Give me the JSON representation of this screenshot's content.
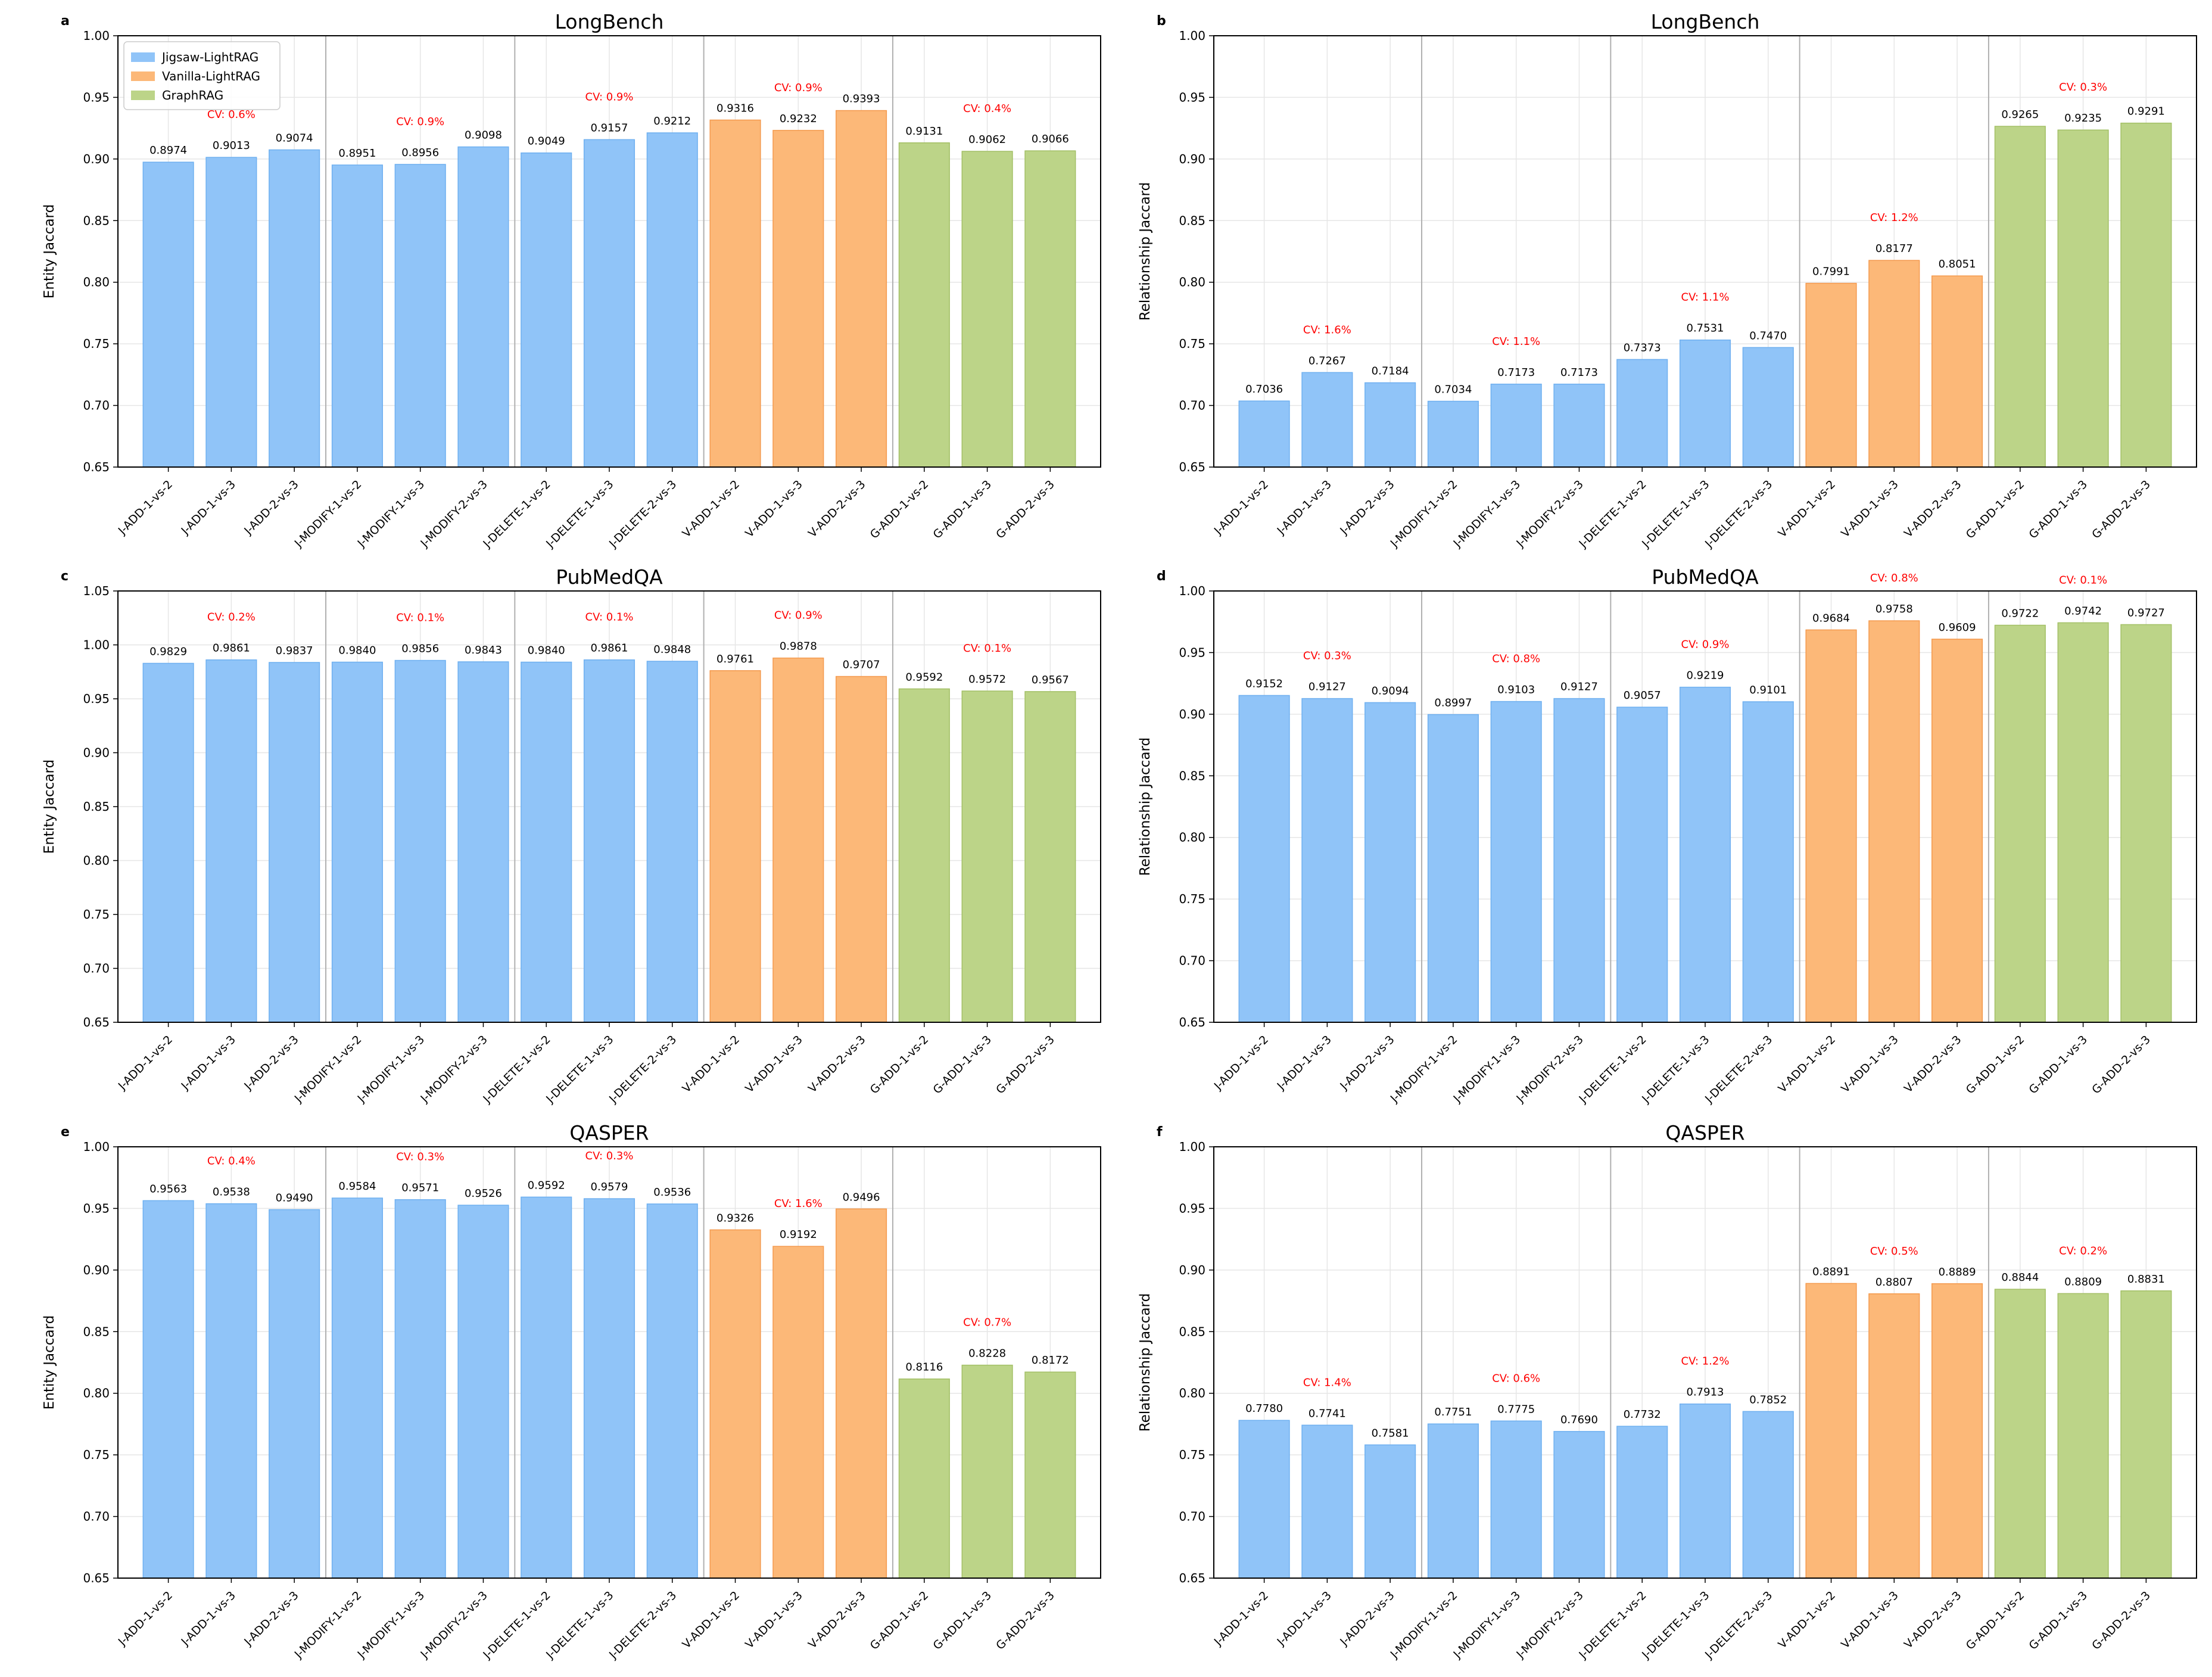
{
  "colors": {
    "jigsaw": "#90c4f8",
    "jigsaw_edge": "#6fb0f0",
    "vanilla": "#fcb878",
    "vanilla_edge": "#f49a4e",
    "graphrag": "#bcd488",
    "graphrag_edge": "#a3c066",
    "cv_label": "#ff0000",
    "grid": "#e6e6e6",
    "separator": "#b0b0b0"
  },
  "legend": {
    "placement": "top-left of panel a",
    "items": [
      {
        "label": "Jigsaw-LightRAG",
        "color_key": "jigsaw"
      },
      {
        "label": "Vanilla-LightRAG",
        "color_key": "vanilla"
      },
      {
        "label": "GraphRAG",
        "color_key": "graphrag"
      }
    ]
  },
  "categories": [
    "J-ADD-1-vs-2",
    "J-ADD-1-vs-3",
    "J-ADD-2-vs-3",
    "J-MODIFY-1-vs-2",
    "J-MODIFY-1-vs-3",
    "J-MODIFY-2-vs-3",
    "J-DELETE-1-vs-2",
    "J-DELETE-1-vs-3",
    "J-DELETE-2-vs-3",
    "V-ADD-1-vs-2",
    "V-ADD-1-vs-3",
    "V-ADD-2-vs-3",
    "G-ADD-1-vs-2",
    "G-ADD-1-vs-3",
    "G-ADD-2-vs-3"
  ],
  "groups": [
    "jigsaw",
    "jigsaw",
    "jigsaw",
    "jigsaw",
    "jigsaw",
    "jigsaw",
    "jigsaw",
    "jigsaw",
    "jigsaw",
    "vanilla",
    "vanilla",
    "vanilla",
    "graphrag",
    "graphrag",
    "graphrag"
  ],
  "chart_data": [
    {
      "panel": "a",
      "type": "bar",
      "title": "LongBench",
      "xlabel": "",
      "ylabel": "Entity Jaccard",
      "ylim": [
        0.65,
        1.0
      ],
      "yticks": [
        "0.65",
        "0.70",
        "0.75",
        "0.80",
        "0.85",
        "0.90",
        "0.95",
        "1.00"
      ],
      "values": [
        0.8974,
        0.9013,
        0.9074,
        0.8951,
        0.8956,
        0.9098,
        0.9049,
        0.9157,
        0.9212,
        0.9316,
        0.9232,
        0.9393,
        0.9131,
        0.9062,
        0.9066
      ],
      "value_labels": [
        "0.8974",
        "0.9013",
        "0.9074",
        "0.8951",
        "0.8956",
        "0.9098",
        "0.9049",
        "0.9157",
        "0.9212",
        "0.9316",
        "0.9232",
        "0.9393",
        "0.9131",
        "0.9062",
        "0.9066"
      ],
      "cv": [
        {
          "index": 1,
          "label": "CV: 0.6%"
        },
        {
          "index": 4,
          "label": "CV: 0.9%"
        },
        {
          "index": 7,
          "label": "CV: 0.9%"
        },
        {
          "index": 10,
          "label": "CV: 0.9%"
        },
        {
          "index": 13,
          "label": "CV: 0.4%"
        }
      ],
      "grid": true
    },
    {
      "panel": "b",
      "type": "bar",
      "title": "LongBench",
      "xlabel": "",
      "ylabel": "Relationship Jaccard",
      "ylim": [
        0.65,
        1.0
      ],
      "yticks": [
        "0.65",
        "0.70",
        "0.75",
        "0.80",
        "0.85",
        "0.90",
        "0.95",
        "1.00"
      ],
      "values": [
        0.7036,
        0.7267,
        0.7184,
        0.7034,
        0.7173,
        0.7173,
        0.7373,
        0.7531,
        0.747,
        0.7991,
        0.8177,
        0.8051,
        0.9265,
        0.9235,
        0.9291
      ],
      "value_labels": [
        "0.7036",
        "0.7267",
        "0.7184",
        "0.7034",
        "0.7173",
        "0.7173",
        "0.7373",
        "0.7531",
        "0.7470",
        "0.7991",
        "0.8177",
        "0.8051",
        "0.9265",
        "0.9235",
        "0.9291"
      ],
      "cv": [
        {
          "index": 1,
          "label": "CV: 1.6%"
        },
        {
          "index": 4,
          "label": "CV: 1.1%"
        },
        {
          "index": 7,
          "label": "CV: 1.1%"
        },
        {
          "index": 10,
          "label": "CV: 1.2%"
        },
        {
          "index": 13,
          "label": "CV: 0.3%"
        }
      ],
      "grid": true
    },
    {
      "panel": "c",
      "type": "bar",
      "title": "PubMedQA",
      "xlabel": "",
      "ylabel": "Entity Jaccard",
      "ylim": [
        0.65,
        1.05
      ],
      "yticks": [
        "0.65",
        "0.70",
        "0.75",
        "0.80",
        "0.85",
        "0.90",
        "0.95",
        "1.00",
        "1.05"
      ],
      "values": [
        0.9829,
        0.9861,
        0.9837,
        0.984,
        0.9856,
        0.9843,
        0.984,
        0.9861,
        0.9848,
        0.9761,
        0.9878,
        0.9707,
        0.9592,
        0.9572,
        0.9567
      ],
      "value_labels": [
        "0.9829",
        "0.9861",
        "0.9837",
        "0.9840",
        "0.9856",
        "0.9843",
        "0.9840",
        "0.9861",
        "0.9848",
        "0.9761",
        "0.9878",
        "0.9707",
        "0.9592",
        "0.9572",
        "0.9567"
      ],
      "cv": [
        {
          "index": 1,
          "label": "CV: 0.2%"
        },
        {
          "index": 4,
          "label": "CV: 0.1%"
        },
        {
          "index": 7,
          "label": "CV: 0.1%"
        },
        {
          "index": 10,
          "label": "CV: 0.9%"
        },
        {
          "index": 13,
          "label": "CV: 0.1%"
        }
      ],
      "grid": true
    },
    {
      "panel": "d",
      "type": "bar",
      "title": "PubMedQA",
      "xlabel": "",
      "ylabel": "Relationship Jaccard",
      "ylim": [
        0.65,
        1.0
      ],
      "yticks": [
        "0.65",
        "0.70",
        "0.75",
        "0.80",
        "0.85",
        "0.90",
        "0.95",
        "1.00"
      ],
      "values": [
        0.9152,
        0.9127,
        0.9094,
        0.8997,
        0.9103,
        0.9127,
        0.9057,
        0.9219,
        0.9101,
        0.9684,
        0.9758,
        0.9609,
        0.9722,
        0.9742,
        0.9727
      ],
      "value_labels": [
        "0.9152",
        "0.9127",
        "0.9094",
        "0.8997",
        "0.9103",
        "0.9127",
        "0.9057",
        "0.9219",
        "0.9101",
        "0.9684",
        "0.9758",
        "0.9609",
        "0.9722",
        "0.9742",
        "0.9727"
      ],
      "cv": [
        {
          "index": 1,
          "label": "CV: 0.3%"
        },
        {
          "index": 4,
          "label": "CV: 0.8%"
        },
        {
          "index": 7,
          "label": "CV: 0.9%"
        },
        {
          "index": 10,
          "label": "CV: 0.8%"
        },
        {
          "index": 13,
          "label": "CV: 0.1%"
        }
      ],
      "grid": true
    },
    {
      "panel": "e",
      "type": "bar",
      "title": "QASPER",
      "xlabel": "",
      "ylabel": "Entity Jaccard",
      "ylim": [
        0.65,
        1.0
      ],
      "yticks": [
        "0.65",
        "0.70",
        "0.75",
        "0.80",
        "0.85",
        "0.90",
        "0.95",
        "1.00"
      ],
      "values": [
        0.9563,
        0.9538,
        0.949,
        0.9584,
        0.9571,
        0.9526,
        0.9592,
        0.9579,
        0.9536,
        0.9326,
        0.9192,
        0.9496,
        0.8116,
        0.8228,
        0.8172
      ],
      "value_labels": [
        "0.9563",
        "0.9538",
        "0.9490",
        "0.9584",
        "0.9571",
        "0.9526",
        "0.9592",
        "0.9579",
        "0.9536",
        "0.9326",
        "0.9192",
        "0.9496",
        "0.8116",
        "0.8228",
        "0.8172"
      ],
      "cv": [
        {
          "index": 1,
          "label": "CV: 0.4%"
        },
        {
          "index": 4,
          "label": "CV: 0.3%"
        },
        {
          "index": 7,
          "label": "CV: 0.3%"
        },
        {
          "index": 10,
          "label": "CV: 1.6%"
        },
        {
          "index": 13,
          "label": "CV: 0.7%"
        }
      ],
      "grid": true
    },
    {
      "panel": "f",
      "type": "bar",
      "title": "QASPER",
      "xlabel": "",
      "ylabel": "Relationship Jaccard",
      "ylim": [
        0.65,
        1.0
      ],
      "yticks": [
        "0.65",
        "0.70",
        "0.75",
        "0.80",
        "0.85",
        "0.90",
        "0.95",
        "1.00"
      ],
      "values": [
        0.778,
        0.7741,
        0.7581,
        0.7751,
        0.7775,
        0.769,
        0.7732,
        0.7913,
        0.7852,
        0.8891,
        0.8807,
        0.8889,
        0.8844,
        0.8809,
        0.8831
      ],
      "value_labels": [
        "0.7780",
        "0.7741",
        "0.7581",
        "0.7751",
        "0.7775",
        "0.7690",
        "0.7732",
        "0.7913",
        "0.7852",
        "0.8891",
        "0.8807",
        "0.8889",
        "0.8844",
        "0.8809",
        "0.8831"
      ],
      "cv": [
        {
          "index": 1,
          "label": "CV: 1.4%"
        },
        {
          "index": 4,
          "label": "CV: 0.6%"
        },
        {
          "index": 7,
          "label": "CV: 1.2%"
        },
        {
          "index": 10,
          "label": "CV: 0.5%"
        },
        {
          "index": 13,
          "label": "CV: 0.2%"
        }
      ],
      "grid": true
    }
  ]
}
